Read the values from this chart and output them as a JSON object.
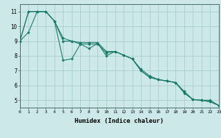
{
  "xlabel": "Humidex (Indice chaleur)",
  "bg_color": "#cce8e8",
  "grid_color": "#aacccc",
  "line_color": "#1a7a6a",
  "xlim": [
    0,
    23
  ],
  "ylim": [
    4.5,
    11.5
  ],
  "xticks": [
    0,
    1,
    2,
    3,
    4,
    5,
    6,
    7,
    8,
    9,
    10,
    11,
    12,
    13,
    14,
    15,
    16,
    17,
    18,
    19,
    20,
    21,
    22,
    23
  ],
  "yticks": [
    5,
    6,
    7,
    8,
    9,
    10,
    11
  ],
  "line1_x": [
    0,
    1,
    2,
    3,
    4,
    5,
    6,
    7,
    8,
    9,
    10,
    11,
    12,
    13,
    14,
    15,
    16,
    17,
    18,
    19,
    20,
    21,
    22,
    23
  ],
  "line1_y": [
    9.0,
    9.6,
    11.0,
    11.0,
    10.35,
    7.7,
    7.8,
    8.8,
    8.5,
    8.85,
    8.0,
    8.3,
    8.05,
    7.8,
    7.0,
    6.55,
    6.4,
    6.3,
    6.2,
    5.5,
    5.05,
    5.0,
    4.9,
    4.65
  ],
  "line2_x": [
    0,
    1,
    2,
    3,
    4,
    5,
    6,
    7,
    8,
    9,
    10,
    11,
    12,
    13,
    14,
    15,
    16,
    17,
    18,
    19,
    20,
    21,
    22,
    23
  ],
  "line2_y": [
    9.0,
    11.0,
    11.0,
    11.0,
    10.35,
    9.0,
    9.0,
    8.8,
    8.8,
    8.8,
    8.2,
    8.3,
    8.05,
    7.8,
    7.0,
    6.55,
    6.4,
    6.3,
    6.2,
    5.5,
    5.05,
    5.0,
    4.9,
    4.65
  ],
  "line3_x": [
    0,
    1,
    2,
    3,
    4,
    5,
    6,
    7,
    8,
    9,
    10,
    11,
    12,
    13,
    14,
    15,
    16,
    17,
    18,
    19,
    20,
    21,
    22,
    23
  ],
  "line3_y": [
    9.0,
    11.0,
    11.0,
    11.0,
    10.35,
    9.2,
    9.0,
    8.9,
    8.9,
    8.9,
    8.3,
    8.3,
    8.05,
    7.8,
    7.1,
    6.65,
    6.4,
    6.3,
    6.2,
    5.6,
    5.05,
    5.0,
    5.0,
    4.65
  ]
}
